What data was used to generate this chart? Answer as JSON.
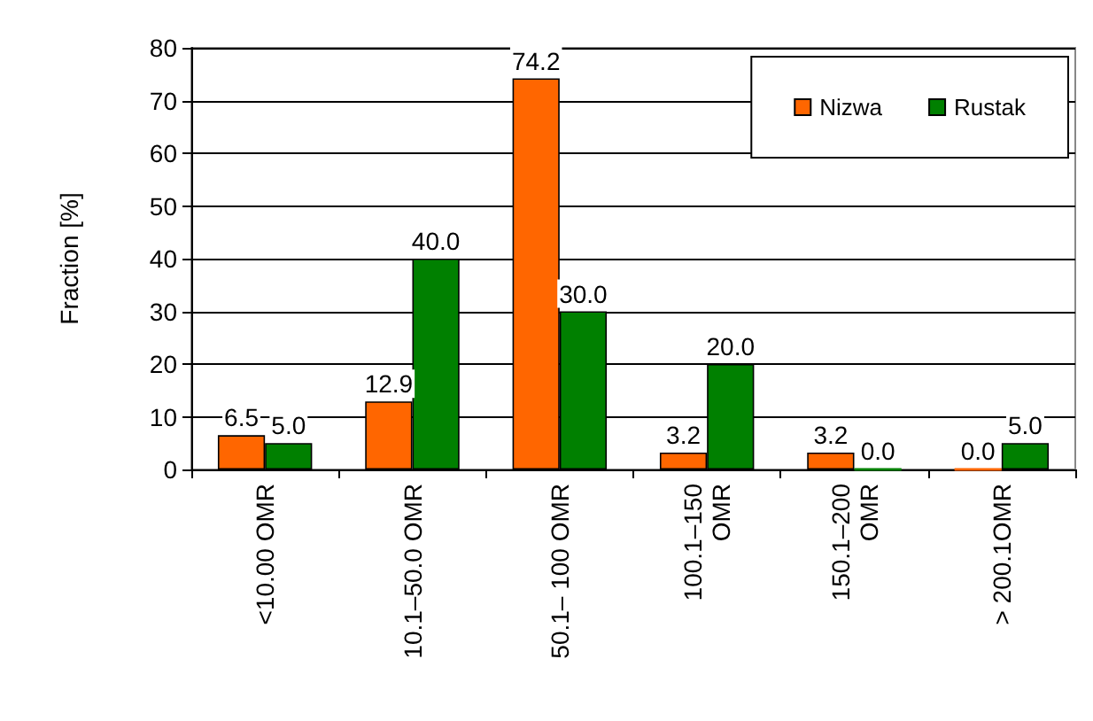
{
  "chart_data": {
    "type": "bar",
    "ylabel": "Fraction [%]",
    "categories": [
      "<10.00 OMR",
      "10.1–50.0 OMR",
      "50.1– 100 OMR",
      "100.1–150\nOMR",
      "150.1–200\nOMR",
      "> 200.1OMR"
    ],
    "series": [
      {
        "name": "Nizwa",
        "color": "#ff6600",
        "values": [
          6.5,
          12.9,
          74.2,
          3.2,
          3.2,
          0.0
        ],
        "value_labels": [
          "6.5",
          "12.9",
          "74.2",
          "3.2",
          "3.2",
          "0.0"
        ]
      },
      {
        "name": "Rustak",
        "color": "#008000",
        "values": [
          5.0,
          40.0,
          30.0,
          20.0,
          0.0,
          5.0
        ],
        "value_labels": [
          "5.0",
          "40.0",
          "30.0",
          "20.0",
          "0.0",
          "5.0"
        ]
      }
    ],
    "ylim": [
      0,
      80
    ],
    "yticks": [
      0,
      10,
      20,
      30,
      40,
      50,
      60,
      70,
      80
    ],
    "grid": "y",
    "legend": "top right"
  }
}
